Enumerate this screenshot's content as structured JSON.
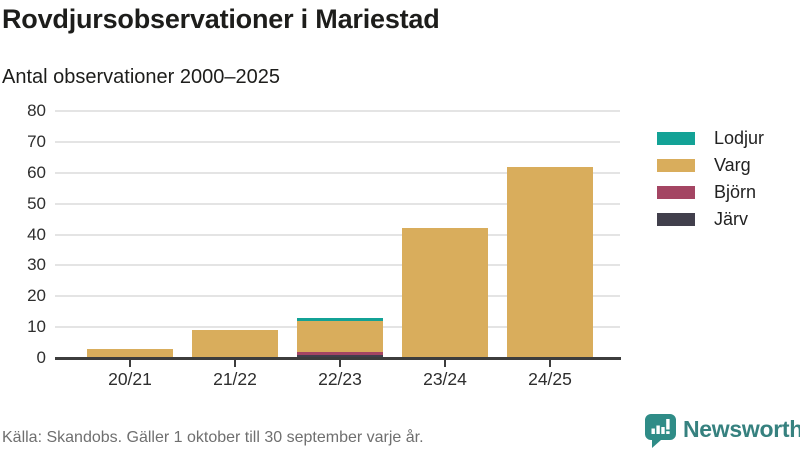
{
  "header": {
    "title": "Rovdjursobservationer i Mariestad",
    "subtitle": "Antal observationer 2000–2025"
  },
  "chart_data": {
    "type": "bar",
    "stacked": true,
    "title": "Rovdjursobservationer i Mariestad",
    "subtitle": "Antal observationer 2000–2025",
    "categories": [
      "20/21",
      "21/22",
      "22/23",
      "23/24",
      "24/25"
    ],
    "series": [
      {
        "name": "Järv",
        "color": "#413F4C",
        "values": [
          0,
          0,
          1,
          0,
          0
        ]
      },
      {
        "name": "Björn",
        "color": "#A44563",
        "values": [
          0,
          0,
          1,
          0,
          0
        ]
      },
      {
        "name": "Varg",
        "color": "#D9AD5C",
        "values": [
          3,
          9,
          10,
          42,
          62
        ]
      },
      {
        "name": "Lodjur",
        "color": "#13A296",
        "values": [
          0,
          0,
          1,
          0,
          0
        ]
      }
    ],
    "totals": [
      3,
      9,
      13,
      42,
      62
    ],
    "xlabel": "",
    "ylabel": "",
    "ylim": [
      0,
      80
    ],
    "yticks": [
      0,
      10,
      20,
      30,
      40,
      50,
      60,
      70,
      80
    ],
    "grid": true,
    "legend_position": "right",
    "legend": [
      {
        "label": "Lodjur",
        "color": "#13A296"
      },
      {
        "label": "Varg",
        "color": "#D9AD5C"
      },
      {
        "label": "Björn",
        "color": "#A44563"
      },
      {
        "label": "Järv",
        "color": "#413F4C"
      }
    ]
  },
  "footer": {
    "source": "Källa: Skandobs. Gäller 1 oktober till 30 september varje år.",
    "brand": "Newsworthy",
    "brand_color": "#36817F"
  }
}
